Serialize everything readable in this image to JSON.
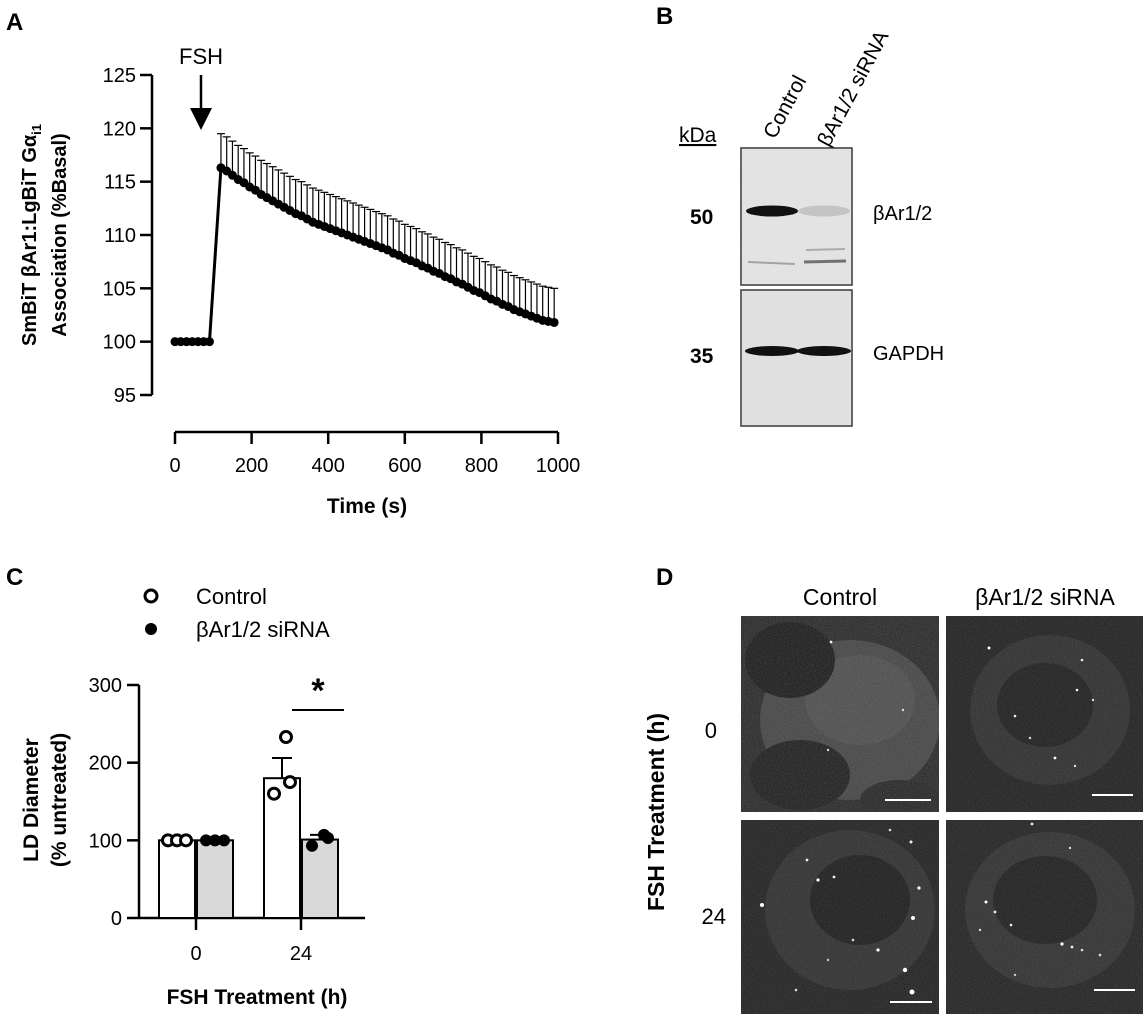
{
  "panel_labels": {
    "a": "A",
    "b": "B",
    "c": "C",
    "d": "D"
  },
  "chart_data": [
    {
      "panel": "A",
      "type": "line",
      "xlabel": "Time (s)",
      "ylabel_line1": "SmBiT βAr1:LgBiT Gα",
      "ylabel_sub": "i1",
      "ylabel_line2": "Association (%Basal)",
      "xlim": [
        0,
        1000
      ],
      "ylim": [
        95,
        125
      ],
      "xticks": [
        0,
        200,
        400,
        600,
        800,
        1000
      ],
      "yticks": [
        95,
        100,
        105,
        110,
        115,
        120,
        125
      ],
      "annotation": {
        "text": "FSH",
        "x": 70
      },
      "x": [
        0,
        15,
        30,
        45,
        60,
        75,
        90,
        120,
        135,
        150,
        165,
        180,
        195,
        210,
        225,
        240,
        255,
        270,
        285,
        300,
        315,
        330,
        345,
        360,
        375,
        390,
        405,
        420,
        435,
        450,
        465,
        480,
        495,
        510,
        525,
        540,
        555,
        570,
        585,
        600,
        615,
        630,
        645,
        660,
        675,
        690,
        705,
        720,
        735,
        750,
        765,
        780,
        795,
        810,
        825,
        840,
        855,
        870,
        885,
        900,
        915,
        930,
        945,
        960,
        975,
        990
      ],
      "y": [
        100,
        100,
        100,
        100,
        100,
        100,
        100,
        116.3,
        116.0,
        115.6,
        115.2,
        114.9,
        114.5,
        114.2,
        113.8,
        113.5,
        113.2,
        112.9,
        112.6,
        112.3,
        112.0,
        111.8,
        111.5,
        111.2,
        111.0,
        110.8,
        110.6,
        110.4,
        110.2,
        110.0,
        109.8,
        109.6,
        109.4,
        109.2,
        109.0,
        108.8,
        108.6,
        108.3,
        108.1,
        107.8,
        107.6,
        107.4,
        107.1,
        106.9,
        106.6,
        106.4,
        106.1,
        105.9,
        105.6,
        105.4,
        105.1,
        104.8,
        104.6,
        104.3,
        104.0,
        103.8,
        103.5,
        103.3,
        103.0,
        102.8,
        102.6,
        102.4,
        102.2,
        102.0,
        101.9,
        101.8
      ],
      "error_up": 3.2
    },
    {
      "panel": "C",
      "type": "bar",
      "xlabel": "FSH Treatment (h)",
      "ylabel_line1": "LD Diameter",
      "ylabel_line2": "(% untreated)",
      "categories": [
        "0",
        "24"
      ],
      "ylim": [
        0,
        300
      ],
      "yticks": [
        0,
        100,
        200,
        300
      ],
      "series": [
        {
          "name": "Control",
          "values": [
            100,
            180
          ],
          "sem": [
            0,
            26
          ],
          "points": [
            [
              100,
              100,
              100
            ],
            [
              160,
              175,
              233
            ]
          ],
          "fill": "#ffffff",
          "marker": "open"
        },
        {
          "name": "βAr1/2 siRNA",
          "values": [
            100,
            101
          ],
          "sem": [
            0,
            6
          ],
          "points": [
            [
              100,
              100,
              100
            ],
            [
              93,
              103,
              107
            ]
          ],
          "fill": "#d9d9d9",
          "marker": "filled"
        }
      ],
      "significance": {
        "text": "*",
        "category": "24"
      }
    }
  ],
  "blot": {
    "unit": "kDa",
    "lanes": [
      "Control",
      "βAr1/2 siRNA"
    ],
    "markers": [
      "50",
      "35"
    ],
    "bands": [
      "βAr1/2",
      "GAPDH"
    ],
    "intensity_top": [
      1.0,
      0.15
    ],
    "intensity_bottom": [
      1.0,
      1.0
    ]
  },
  "micrographs": {
    "columns": [
      "Control",
      "βAr1/2 siRNA"
    ],
    "rows": [
      "0",
      "24"
    ],
    "row_title": "FSH Treatment (h)"
  }
}
